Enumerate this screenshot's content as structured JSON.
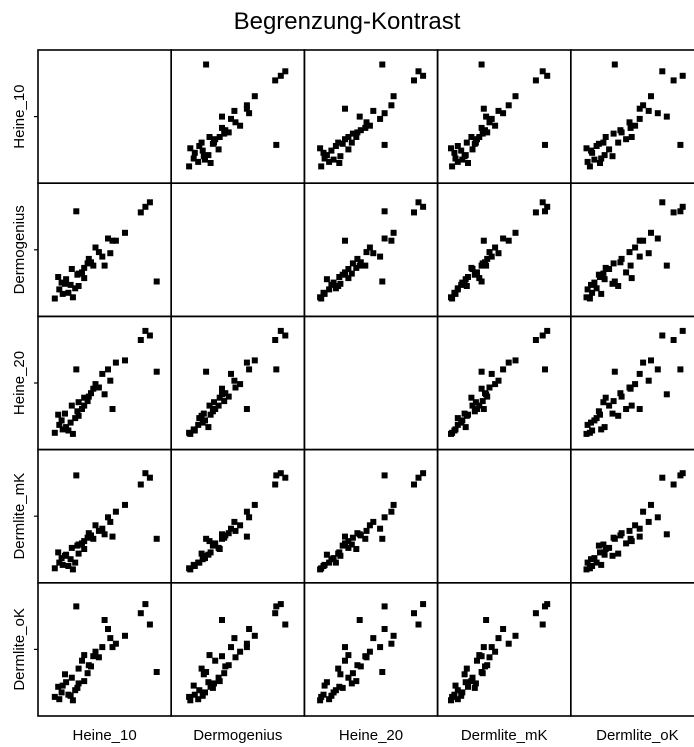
{
  "chart_data": {
    "type": "scatter",
    "title": "Begrenzung-Kontrast",
    "variables": [
      "Heine_10",
      "Dermogenius",
      "Heine_20",
      "Dermlite_mK",
      "Dermlite_oK"
    ],
    "layout": "scatterplot-matrix",
    "diagonal": "empty",
    "axis_range": [
      0,
      1
    ],
    "tick_labels_shown": false,
    "grid": false,
    "legend": "none",
    "marker_color": "#000000",
    "observations": [
      {
        "Heine_10": 0.27,
        "Dermogenius": 0.18,
        "Heine_20": 0.21,
        "Dermlite_mK": 0.17,
        "Dermlite_oK": 0.33
      },
      {
        "Heine_10": 0.22,
        "Dermogenius": 0.08,
        "Heine_20": 0.05,
        "Dermlite_mK": 0.03,
        "Dermlite_oK": 0.05
      },
      {
        "Heine_10": 0.1,
        "Dermogenius": 0.15,
        "Heine_20": 0.13,
        "Dermlite_mK": 0.09,
        "Dermlite_oK": 0.06
      },
      {
        "Heine_10": 0.12,
        "Dermogenius": 0.21,
        "Heine_20": 0.17,
        "Dermlite_mK": 0.13,
        "Dermlite_oK": 0.12
      },
      {
        "Heine_10": 0.09,
        "Dermogenius": 0.26,
        "Heine_20": 0.22,
        "Dermlite_mK": 0.18,
        "Dermlite_oK": 0.17
      },
      {
        "Heine_10": 0.18,
        "Dermogenius": 0.12,
        "Heine_20": 0.08,
        "Dermlite_mK": 0.06,
        "Dermlite_oK": 0.1
      },
      {
        "Heine_10": 0.21,
        "Dermogenius": 0.33,
        "Heine_20": 0.3,
        "Dermlite_mK": 0.22,
        "Dermlite_oK": 0.25
      },
      {
        "Heine_10": 0.16,
        "Dermogenius": 0.24,
        "Heine_20": 0.11,
        "Dermlite_mK": 0.16,
        "Dermlite_oK": 0.21
      },
      {
        "Heine_10": 0.26,
        "Dermogenius": 0.28,
        "Heine_20": 0.25,
        "Dermlite_mK": 0.24,
        "Dermlite_oK": 0.16
      },
      {
        "Heine_10": 0.24,
        "Dermogenius": 0.16,
        "Heine_20": 0.19,
        "Dermlite_mK": 0.09,
        "Dermlite_oK": 0.14
      },
      {
        "Heine_10": 0.3,
        "Dermogenius": 0.3,
        "Heine_20": 0.27,
        "Dermlite_mK": 0.26,
        "Dermlite_oK": 0.4
      },
      {
        "Heine_10": 0.32,
        "Dermogenius": 0.34,
        "Heine_20": 0.37,
        "Dermlite_mK": 0.21,
        "Dermlite_oK": 0.22
      },
      {
        "Heine_10": 0.35,
        "Dermogenius": 0.38,
        "Heine_20": 0.34,
        "Dermlite_mK": 0.31,
        "Dermlite_oK": 0.29
      },
      {
        "Heine_10": 0.38,
        "Dermogenius": 0.39,
        "Heine_20": 0.41,
        "Dermlite_mK": 0.33,
        "Dermlite_oK": 0.35
      },
      {
        "Heine_10": 0.4,
        "Dermogenius": 0.36,
        "Heine_20": 0.45,
        "Dermlite_mK": 0.3,
        "Dermlite_oK": 0.44
      },
      {
        "Heine_10": 0.45,
        "Dermogenius": 0.48,
        "Heine_20": 0.46,
        "Dermlite_mK": 0.37,
        "Dermlite_oK": 0.43
      },
      {
        "Heine_10": 0.42,
        "Dermogenius": 0.52,
        "Heine_20": 0.49,
        "Dermlite_mK": 0.42,
        "Dermlite_oK": 0.48
      },
      {
        "Heine_10": 0.48,
        "Dermogenius": 0.44,
        "Heine_20": 0.58,
        "Dermlite_mK": 0.39,
        "Dermlite_oK": 0.52
      },
      {
        "Heine_10": 0.55,
        "Dermogenius": 0.47,
        "Heine_20": 0.52,
        "Dermlite_mK": 0.45,
        "Dermlite_oK": 0.6
      },
      {
        "Heine_10": 0.53,
        "Dermogenius": 0.6,
        "Heine_20": 0.62,
        "Dermlite_mK": 0.49,
        "Dermlite_oK": 0.68
      },
      {
        "Heine_10": 0.6,
        "Dermogenius": 0.58,
        "Heine_20": 0.68,
        "Dermlite_mK": 0.54,
        "Dermlite_oK": 0.55
      },
      {
        "Heine_10": 0.68,
        "Dermogenius": 0.65,
        "Heine_20": 0.7,
        "Dermlite_mK": 0.6,
        "Dermlite_oK": 0.62
      },
      {
        "Heine_10": 0.82,
        "Dermogenius": 0.83,
        "Heine_20": 0.88,
        "Dermlite_mK": 0.78,
        "Dermlite_oK": 0.82
      },
      {
        "Heine_10": 0.9,
        "Dermogenius": 0.92,
        "Heine_20": 0.92,
        "Dermlite_mK": 0.84,
        "Dermlite_oK": 0.72
      },
      {
        "Heine_10": 0.86,
        "Dermogenius": 0.88,
        "Heine_20": 0.96,
        "Dermlite_mK": 0.88,
        "Dermlite_oK": 0.9
      },
      {
        "Heine_10": 0.32,
        "Dermogenius": 0.25,
        "Heine_20": 0.3,
        "Dermlite_mK": 0.28,
        "Dermlite_oK": 0.45
      },
      {
        "Heine_10": 0.15,
        "Dermogenius": 0.2,
        "Heine_20": 0.23,
        "Dermlite_mK": 0.15,
        "Dermlite_oK": 0.28
      },
      {
        "Heine_10": 0.2,
        "Dermogenius": 0.19,
        "Heine_20": 0.15,
        "Dermlite_mK": 0.12,
        "Dermlite_oK": 0.09
      },
      {
        "Heine_10": 0.13,
        "Dermogenius": 0.11,
        "Heine_20": 0.09,
        "Dermlite_mK": 0.07,
        "Dermlite_oK": 0.18
      },
      {
        "Heine_10": 0.27,
        "Dermogenius": 0.29,
        "Heine_20": 0.33,
        "Dermlite_mK": 0.25,
        "Dermlite_oK": 0.2
      },
      {
        "Heine_10": 0.25,
        "Dermogenius": 0.84,
        "Heine_20": 0.62,
        "Dermlite_mK": 0.86,
        "Dermlite_oK": 0.88
      },
      {
        "Heine_10": 0.96,
        "Dermogenius": 0.22,
        "Heine_20": 0.6,
        "Dermlite_mK": 0.3,
        "Dermlite_oK": 0.3
      },
      {
        "Heine_10": 0.57,
        "Dermogenius": 0.58,
        "Heine_20": 0.27,
        "Dermlite_mK": 0.32,
        "Dermlite_oK": 0.52
      },
      {
        "Heine_10": 0.5,
        "Dermogenius": 0.36,
        "Heine_20": 0.4,
        "Dermlite_mK": 0.34,
        "Dermlite_oK": 0.76
      },
      {
        "Heine_10": 0.06,
        "Dermogenius": 0.07,
        "Heine_20": 0.06,
        "Dermlite_mK": 0.04,
        "Dermlite_oK": 0.08
      },
      {
        "Heine_10": 0.36,
        "Dermogenius": 0.42,
        "Heine_20": 0.38,
        "Dermlite_mK": 0.35,
        "Dermlite_oK": 0.36
      }
    ]
  }
}
